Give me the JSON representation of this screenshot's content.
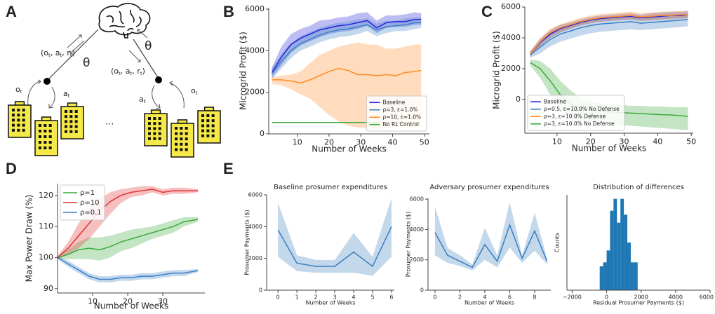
{
  "labels": {
    "panels": [
      "A",
      "B",
      "C",
      "D",
      "E"
    ]
  },
  "diagram": {
    "theta": "θ",
    "obs": "o",
    "act": "a",
    "sub": "t",
    "ellipsis": "...",
    "tuple": {
      "open": "(",
      "vars": [
        "o",
        "a",
        "r"
      ],
      "sep": ", ",
      "close": ")"
    }
  },
  "chart_data": [
    {
      "type": "line",
      "ylabel": "Microgrid Profit ($)",
      "xlabel": "Number of Weeks",
      "legend": "lower right",
      "xlim": [
        1,
        51.6
      ],
      "ylim": [
        0,
        6070
      ],
      "xticks": [
        10,
        20,
        30,
        40,
        50
      ],
      "yticks": [
        0,
        2000,
        4000,
        6000
      ],
      "x": [
        2,
        5,
        8,
        11,
        14,
        17,
        20,
        23,
        26,
        29,
        32,
        35,
        38,
        41,
        44,
        47,
        49
      ],
      "series": [
        {
          "name": "Baseline",
          "color": "#2323d9",
          "values": [
            2950,
            3700,
            4300,
            4600,
            4800,
            5000,
            5100,
            5200,
            5250,
            5350,
            5450,
            5100,
            5350,
            5400,
            5400,
            5500,
            5500
          ],
          "lower": [
            2700,
            3300,
            3900,
            4250,
            4450,
            4650,
            4800,
            4900,
            4950,
            5050,
            5200,
            4850,
            5100,
            5150,
            5150,
            5250,
            5250
          ],
          "upper": [
            3200,
            4200,
            4800,
            5050,
            5200,
            5450,
            5500,
            5600,
            5650,
            5800,
            5850,
            5450,
            5700,
            5700,
            5750,
            5850,
            5800
          ]
        },
        {
          "name": "ρ=3, ε=1.0%",
          "color": "#3b7fc4",
          "values": [
            2900,
            3500,
            4000,
            4350,
            4550,
            4750,
            4900,
            5000,
            5050,
            5150,
            5250,
            5000,
            5150,
            5200,
            5250,
            5350,
            5350
          ],
          "lower": [
            2650,
            3150,
            3650,
            4000,
            4200,
            4400,
            4550,
            4650,
            4700,
            4800,
            4950,
            4700,
            4850,
            4950,
            4950,
            5050,
            5100
          ],
          "upper": [
            3150,
            3850,
            4350,
            4700,
            4900,
            5100,
            5250,
            5350,
            5400,
            5500,
            5550,
            5300,
            5450,
            5450,
            5550,
            5600,
            5600
          ]
        },
        {
          "name": "ρ=10, ε=1.0%",
          "color": "#ff8a24",
          "values": [
            2600,
            2600,
            2550,
            2450,
            2600,
            2800,
            3000,
            3150,
            3050,
            2850,
            2850,
            2800,
            2850,
            2800,
            2950,
            3000,
            3050
          ],
          "lower": [
            2400,
            2350,
            2150,
            1900,
            1700,
            1300,
            900,
            600,
            400,
            300,
            300,
            200,
            300,
            350,
            300,
            300,
            300
          ],
          "upper": [
            2750,
            2800,
            2850,
            3000,
            3400,
            3800,
            4000,
            4200,
            4300,
            4400,
            4300,
            4300,
            4100,
            4100,
            4200,
            4300,
            4300
          ]
        },
        {
          "name": "No RL Control",
          "color": "#3caa3c",
          "values": [
            550,
            550,
            550,
            550,
            550,
            550,
            550,
            550,
            550,
            550,
            550,
            550,
            550,
            550,
            550,
            550,
            550
          ]
        }
      ]
    },
    {
      "type": "line",
      "ylabel": "Microgrid Profit ($)",
      "xlabel": "Number of Weeks",
      "legend": "lower left",
      "xlim": [
        0.4,
        50.6
      ],
      "ylim": [
        -2180,
        6000
      ],
      "xticks": [
        10,
        20,
        30,
        40,
        50
      ],
      "yticks": [
        0,
        2000,
        4000,
        6000
      ],
      "x": [
        2,
        5,
        8,
        11,
        14,
        17,
        20,
        23,
        26,
        29,
        32,
        35,
        38,
        41,
        44,
        47,
        49
      ],
      "series": [
        {
          "name": "Baseline",
          "color": "#2323d9",
          "values": [
            2950,
            3700,
            4250,
            4600,
            4800,
            5000,
            5150,
            5250,
            5300,
            5350,
            5400,
            5300,
            5350,
            5400,
            5450,
            5450,
            5500
          ],
          "lower": [
            2800,
            3450,
            4000,
            4350,
            4600,
            4800,
            4950,
            5050,
            5100,
            5150,
            5200,
            5100,
            5150,
            5200,
            5250,
            5250,
            5300
          ],
          "upper": [
            3100,
            3950,
            4500,
            4850,
            5000,
            5200,
            5350,
            5450,
            5500,
            5550,
            5600,
            5500,
            5600,
            5650,
            5700,
            5700,
            5750
          ]
        },
        {
          "name": "ρ=0.5, ε=10.0% No Defense",
          "color": "#3b7fc4",
          "values": [
            2900,
            3400,
            3900,
            4250,
            4450,
            4650,
            4800,
            4900,
            4950,
            5000,
            5050,
            4950,
            5000,
            5050,
            5100,
            5150,
            5200
          ],
          "lower": [
            2700,
            3000,
            3450,
            3750,
            3950,
            4150,
            4300,
            4400,
            4450,
            4500,
            4550,
            4500,
            4550,
            4600,
            4650,
            4700,
            4750
          ],
          "upper": [
            3100,
            3800,
            4300,
            4650,
            4850,
            5050,
            5200,
            5300,
            5350,
            5400,
            5450,
            5350,
            5450,
            5500,
            5550,
            5550,
            5600
          ]
        },
        {
          "name": "ρ=3, ε=10.0% Defense",
          "color": "#ff8a24",
          "values": [
            2950,
            3750,
            4350,
            4650,
            4850,
            5050,
            5200,
            5300,
            5350,
            5400,
            5450,
            5350,
            5400,
            5450,
            5450,
            5500,
            5500
          ],
          "lower": [
            2750,
            3500,
            4050,
            4350,
            4600,
            4800,
            4950,
            5050,
            5100,
            5150,
            5200,
            5100,
            5150,
            5200,
            5200,
            5250,
            5250
          ],
          "upper": [
            3150,
            4000,
            4600,
            4900,
            5100,
            5300,
            5450,
            5550,
            5600,
            5650,
            5700,
            5600,
            5650,
            5700,
            5700,
            5750,
            5750
          ]
        },
        {
          "name": "ρ=3, ε=10.0% No Defense",
          "color": "#3caa3c",
          "values": [
            2400,
            2000,
            1200,
            300,
            -300,
            -550,
            -700,
            -750,
            -800,
            -850,
            -880,
            -900,
            -950,
            -980,
            -1000,
            -1050,
            -1100
          ],
          "lower": [
            2200,
            1400,
            300,
            -600,
            -1100,
            -1300,
            -1450,
            -1550,
            -1600,
            -1650,
            -1700,
            -1750,
            -1800,
            -1850,
            -1900,
            -1950,
            -2000
          ],
          "upper": [
            2600,
            2500,
            2000,
            1200,
            600,
            100,
            -150,
            -250,
            -300,
            -350,
            -400,
            -400,
            -450,
            -450,
            -500,
            -500,
            -500
          ]
        }
      ]
    },
    {
      "type": "line",
      "ylabel": "Max Power Draw (%)",
      "xlabel": "Number of Weeks",
      "legend": "upper left",
      "xlim": [
        0,
        42
      ],
      "ylim": [
        88.6,
        123.8
      ],
      "xticks": [
        10,
        20,
        30
      ],
      "yticks": [
        90,
        100,
        110,
        120
      ],
      "x": [
        0,
        3,
        6,
        9,
        12,
        15,
        18,
        21,
        24,
        27,
        30,
        33,
        36,
        40
      ],
      "series": [
        {
          "name": "ρ=1",
          "color": "#3caa3c",
          "values": [
            100,
            101,
            102.5,
            103,
            102.5,
            103.5,
            105,
            106,
            107,
            108,
            109,
            110,
            111.5,
            112.3
          ],
          "lower": [
            99.5,
            99.5,
            99.5,
            99.5,
            99,
            100,
            102,
            103,
            104.5,
            106,
            107,
            108,
            110,
            111.5
          ],
          "upper": [
            100.5,
            102.5,
            105,
            106.5,
            106.5,
            107,
            108,
            109,
            109.5,
            110,
            111,
            112,
            113,
            113
          ]
        },
        {
          "name": "ρ=10",
          "color": "#e03030",
          "values": [
            100,
            103,
            107,
            111,
            115,
            118,
            120,
            121,
            121.5,
            122,
            121,
            121.5,
            121.5,
            121.5
          ],
          "lower": [
            99.5,
            101,
            103,
            106,
            110,
            114,
            117.5,
            119.5,
            120,
            121,
            120,
            120.5,
            120.5,
            121
          ],
          "upper": [
            100.5,
            105,
            111,
            116,
            119,
            121,
            122,
            122.5,
            123,
            123,
            122,
            122.5,
            122.5,
            122
          ]
        },
        {
          "name": "ρ=0.1",
          "color": "#3b7fc4",
          "values": [
            100,
            98,
            96,
            94,
            93,
            93,
            93.5,
            93.5,
            94,
            94,
            94.5,
            95,
            95,
            95.8
          ],
          "lower": [
            99.5,
            97,
            95,
            93,
            92,
            92,
            92.5,
            92.5,
            93,
            93,
            93.5,
            94,
            94,
            95.3
          ],
          "upper": [
            100.5,
            99,
            97,
            95,
            94,
            94,
            94.5,
            94.5,
            95,
            95,
            95.5,
            96,
            96,
            96.3
          ]
        }
      ]
    },
    {
      "type": "line",
      "title": "Baseline prosumer expenditures",
      "ylabel": "Prosumer Payments ($)",
      "xlabel": "Number of Weeks",
      "xlim": [
        -0.6,
        6.15
      ],
      "ylim": [
        0,
        6000
      ],
      "xticks": [
        0,
        1,
        2,
        3,
        4,
        5,
        6
      ],
      "yticks": [
        0,
        2000,
        4000,
        6000
      ],
      "x": [
        0,
        1,
        2,
        3,
        4,
        5,
        6
      ],
      "color": "#3a7ebf",
      "values": [
        3800,
        1700,
        1500,
        1500,
        2400,
        1500,
        4000
      ],
      "lower": [
        2100,
        1200,
        1100,
        1100,
        1100,
        900,
        2100
      ],
      "upper": [
        5500,
        2200,
        1900,
        1900,
        3600,
        2100,
        5800
      ]
    },
    {
      "type": "line",
      "title": "Adversary prosumer expenditures",
      "ylabel": "Prosumer Payments ($)",
      "xlabel": "Number of Weeks",
      "xlim": [
        -0.56,
        9.3
      ],
      "ylim": [
        0,
        6050
      ],
      "xticks": [
        0,
        2,
        4,
        6,
        8
      ],
      "yticks": [
        0,
        2000,
        4000,
        6000
      ],
      "x": [
        0,
        1,
        2,
        3,
        4,
        5,
        6,
        7,
        8,
        9
      ],
      "color": "#3a7ebf",
      "values": [
        3800,
        2300,
        1900,
        1500,
        3000,
        1900,
        4300,
        2100,
        3900,
        1900
      ],
      "lower": [
        2300,
        1800,
        1600,
        1300,
        2000,
        1500,
        2800,
        1800,
        2600,
        1700
      ],
      "upper": [
        5500,
        2800,
        2300,
        1700,
        4100,
        2300,
        5800,
        2300,
        5100,
        2100
      ]
    },
    {
      "type": "histogram",
      "title": "Distribution of differences",
      "ylabel": "Counts",
      "xlabel": "Residual Prosumer Payments ($)",
      "xlim": [
        -2300,
        6000
      ],
      "ylim": [
        0,
        24
      ],
      "xticks": [
        {
          "value": -2000,
          "label": "−2000"
        },
        0,
        2000,
        4000,
        6000
      ],
      "color": "#1f77b4",
      "bins": [
        -400,
        -200,
        0,
        200,
        400,
        600,
        800,
        1000,
        1200,
        1400,
        1600,
        1800
      ],
      "values": [
        6,
        7,
        10,
        20,
        23,
        17,
        23,
        19,
        12,
        7,
        7
      ]
    }
  ]
}
